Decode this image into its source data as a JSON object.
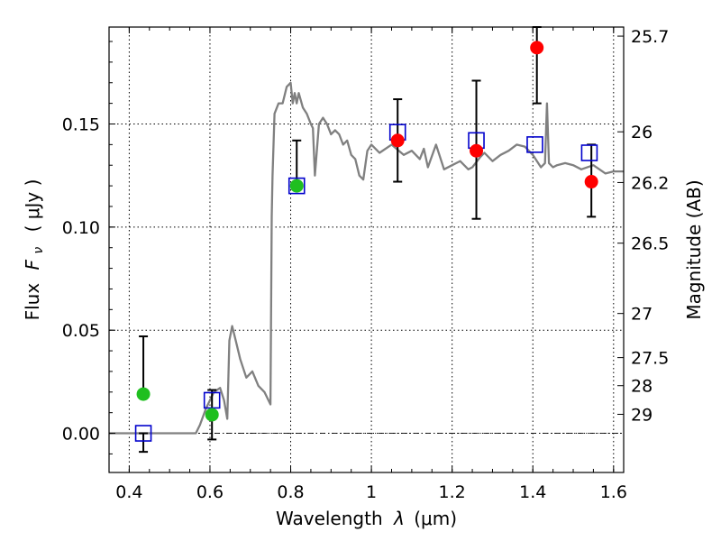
{
  "chart_data": {
    "type": "scatter",
    "xlabel": {
      "prefix": "Wavelength",
      "symbol": "λ",
      "unit": "(μm)"
    },
    "ylabel": {
      "prefix": "Flux",
      "symbol": "F",
      "subscript": "ν",
      "unit": "( μJy )"
    },
    "y2label": "Magnitude (AB)",
    "xlim": [
      0.35,
      1.625
    ],
    "ylim": [
      -0.019,
      0.197
    ],
    "xticks": [
      0.4,
      0.6,
      0.8,
      1.0,
      1.2,
      1.4,
      1.6
    ],
    "xtick_labels": [
      "0.4",
      "0.6",
      "0.8",
      "1",
      "1.2",
      "1.4",
      "1.6"
    ],
    "yticks": [
      0.0,
      0.05,
      0.1,
      0.15
    ],
    "ytick_labels": [
      "0.00",
      "0.05",
      "0.10",
      "0.15"
    ],
    "y2ticks": [
      {
        "label": "25.7",
        "flux": 0.1926
      },
      {
        "label": "26",
        "flux": 0.1462
      },
      {
        "label": "26.2",
        "flux": 0.1216
      },
      {
        "label": "26.5",
        "flux": 0.0922
      },
      {
        "label": "27",
        "flux": 0.0581
      },
      {
        "label": "27.5",
        "flux": 0.0367
      },
      {
        "label": "28",
        "flux": 0.0231
      },
      {
        "label": "29",
        "flux": 0.0092
      }
    ],
    "zero_line": 0.0,
    "grid": true,
    "colors": {
      "model": "#808080",
      "green": "#1fbf1f",
      "red": "#ff0000",
      "box": "#0000cc",
      "errorbar": "#000000"
    },
    "series": [
      {
        "name": "model-spectrum",
        "kind": "line",
        "x": [
          0.35,
          0.565,
          0.575,
          0.59,
          0.61,
          0.625,
          0.635,
          0.643,
          0.648,
          0.655,
          0.665,
          0.675,
          0.69,
          0.705,
          0.72,
          0.735,
          0.745,
          0.75,
          0.753,
          0.755,
          0.76,
          0.77,
          0.78,
          0.79,
          0.8,
          0.805,
          0.81,
          0.815,
          0.82,
          0.83,
          0.84,
          0.85,
          0.855,
          0.86,
          0.87,
          0.88,
          0.89,
          0.9,
          0.91,
          0.92,
          0.93,
          0.94,
          0.95,
          0.96,
          0.97,
          0.98,
          0.99,
          1.0,
          1.02,
          1.05,
          1.08,
          1.1,
          1.12,
          1.13,
          1.14,
          1.16,
          1.18,
          1.2,
          1.22,
          1.24,
          1.25,
          1.27,
          1.28,
          1.3,
          1.32,
          1.34,
          1.36,
          1.38,
          1.4,
          1.42,
          1.43,
          1.435,
          1.44,
          1.45,
          1.46,
          1.48,
          1.5,
          1.52,
          1.55,
          1.58,
          1.6,
          1.625
        ],
        "y": [
          0.0,
          0.0,
          0.004,
          0.012,
          0.02,
          0.022,
          0.016,
          0.007,
          0.045,
          0.052,
          0.044,
          0.036,
          0.027,
          0.03,
          0.023,
          0.02,
          0.016,
          0.014,
          0.105,
          0.125,
          0.155,
          0.16,
          0.16,
          0.168,
          0.17,
          0.16,
          0.165,
          0.16,
          0.165,
          0.158,
          0.155,
          0.15,
          0.148,
          0.125,
          0.15,
          0.153,
          0.15,
          0.145,
          0.147,
          0.145,
          0.14,
          0.142,
          0.135,
          0.133,
          0.125,
          0.123,
          0.137,
          0.14,
          0.136,
          0.14,
          0.135,
          0.137,
          0.133,
          0.138,
          0.129,
          0.14,
          0.128,
          0.13,
          0.132,
          0.128,
          0.129,
          0.134,
          0.136,
          0.132,
          0.135,
          0.137,
          0.14,
          0.139,
          0.135,
          0.129,
          0.131,
          0.16,
          0.131,
          0.129,
          0.13,
          0.131,
          0.13,
          0.128,
          0.13,
          0.126,
          0.127,
          0.127
        ]
      },
      {
        "name": "green-detections",
        "kind": "scatter",
        "x": [
          0.435,
          0.605,
          0.815
        ],
        "y": [
          0.019,
          0.009,
          0.12
        ],
        "err_low": [
          0.019,
          0.009,
          0.12
        ],
        "err_high": [
          0.047,
          0.021,
          0.142
        ],
        "err_x": [
          0.435,
          0.605,
          0.815
        ]
      },
      {
        "name": "red-detections",
        "kind": "scatter",
        "x": [
          1.065,
          1.26,
          1.41,
          1.545
        ],
        "y": [
          0.142,
          0.137,
          0.187,
          0.122
        ],
        "err_low": [
          0.122,
          0.104,
          0.16,
          0.105
        ],
        "err_high": [
          0.162,
          0.171,
          0.197,
          0.14
        ],
        "err_x": [
          1.065,
          1.26,
          1.41,
          1.545
        ]
      },
      {
        "name": "model-boxes",
        "kind": "scatter",
        "x": [
          0.435,
          0.605,
          0.815,
          1.065,
          1.26,
          1.405,
          1.54
        ],
        "y": [
          0.0,
          0.016,
          0.12,
          0.146,
          0.142,
          0.14,
          0.136
        ]
      },
      {
        "name": "lower-errorbars",
        "kind": "errorbar",
        "x": [
          0.435,
          0.605
        ],
        "low": [
          -0.009,
          -0.003
        ],
        "high": [
          0.0,
          0.009
        ]
      }
    ]
  }
}
